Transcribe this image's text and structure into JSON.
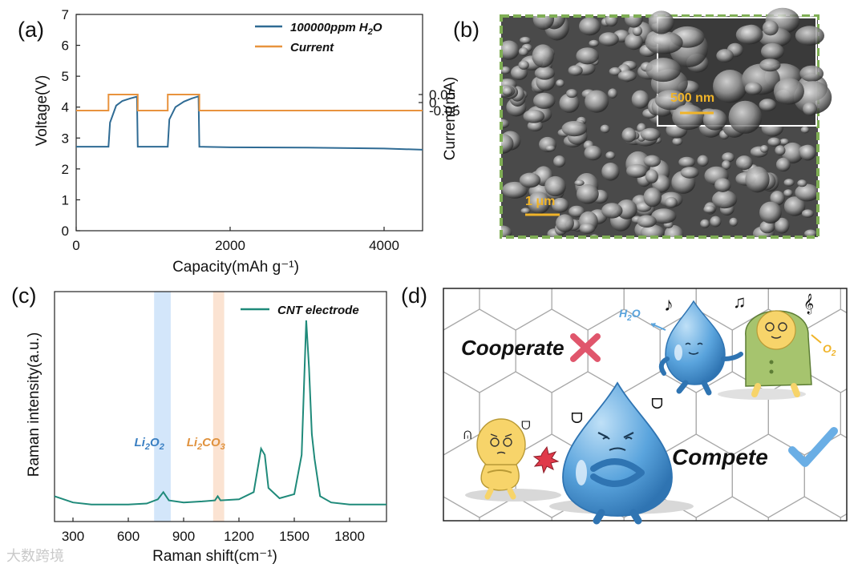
{
  "panels": {
    "a": "(a)",
    "b": "(b)",
    "c": "(c)",
    "d": "(d)"
  },
  "chart_data": [
    {
      "id": "a",
      "type": "line",
      "xlabel": "Capacity(mAh g⁻¹)",
      "ylabel": "Voltage(V)",
      "y2label": "Current(mA)",
      "xlim": [
        0,
        4500
      ],
      "ylim": [
        0,
        7
      ],
      "xticks": [
        "0",
        "2000",
        "4000"
      ],
      "yticks": [
        "0",
        "1",
        "2",
        "3",
        "4",
        "5",
        "6",
        "7"
      ],
      "y2lim": [
        -0.8,
        0.55
      ],
      "y2ticks": [
        "0.05",
        "0",
        "-0.05"
      ],
      "legend": [
        "100000ppm H2O",
        "Current"
      ],
      "series": [
        {
          "name": "100000ppm H2O",
          "color": "#2f6b94",
          "x": [
            0,
            420,
            440,
            520,
            600,
            700,
            790,
            800,
            1190,
            1210,
            1290,
            1400,
            1500,
            1590,
            1600,
            2000,
            3000,
            4000,
            4500
          ],
          "y": [
            2.72,
            2.72,
            3.5,
            4.05,
            4.2,
            4.28,
            4.34,
            2.72,
            2.72,
            3.6,
            4.0,
            4.18,
            4.28,
            4.35,
            2.72,
            2.7,
            2.69,
            2.66,
            2.62
          ]
        },
        {
          "name": "Current",
          "color": "#e8933e",
          "x": [
            0,
            420,
            420,
            800,
            800,
            1190,
            1190,
            1600,
            1600,
            4500
          ],
          "y": [
            -0.05,
            -0.05,
            0.05,
            0.05,
            -0.05,
            -0.05,
            0.05,
            0.05,
            -0.05,
            -0.05
          ]
        }
      ]
    },
    {
      "id": "c",
      "type": "line",
      "xlabel": "Raman shift(cm⁻¹)",
      "ylabel": "Raman intensity(a.u.)",
      "xlim": [
        200,
        2000
      ],
      "xticks": [
        "300",
        "600",
        "900",
        "1200",
        "1500",
        "1800"
      ],
      "legend": [
        "CNT electrode"
      ],
      "bands": [
        {
          "label": "Li2O2",
          "from": 740,
          "to": 830,
          "color": "#d3e6fa"
        },
        {
          "label": "Li2CO3",
          "from": 1060,
          "to": 1120,
          "color": "#fbe3d2"
        }
      ],
      "series": [
        {
          "name": "CNT electrode",
          "color": "#1f8a7a",
          "x": [
            200,
            250,
            300,
            400,
            500,
            600,
            700,
            760,
            790,
            820,
            900,
            1000,
            1070,
            1085,
            1100,
            1200,
            1280,
            1320,
            1340,
            1360,
            1420,
            1500,
            1540,
            1565,
            1580,
            1595,
            1610,
            1640,
            1700,
            1800,
            1900,
            2000
          ],
          "y": [
            0.1,
            0.085,
            0.07,
            0.06,
            0.06,
            0.06,
            0.065,
            0.085,
            0.12,
            0.08,
            0.07,
            0.075,
            0.08,
            0.1,
            0.08,
            0.085,
            0.12,
            0.33,
            0.3,
            0.14,
            0.09,
            0.11,
            0.3,
            0.95,
            0.72,
            0.4,
            0.28,
            0.1,
            0.07,
            0.06,
            0.06,
            0.06
          ]
        }
      ]
    }
  ],
  "panel_b": {
    "scale_main": "1 μm",
    "scale_inset": "500 nm"
  },
  "panel_d": {
    "cooperate": "Cooperate",
    "compete": "Compete",
    "h2o": "H2O",
    "o2": "O2"
  },
  "watermark": "大数跨境",
  "colors": {
    "blue": "#2f6b94",
    "orange": "#e8933e",
    "teal": "#1f8a7a",
    "green_border": "#7fae55",
    "drop": "#5aa4dd",
    "cross": "#e0566c",
    "check": "#6aaee5"
  }
}
